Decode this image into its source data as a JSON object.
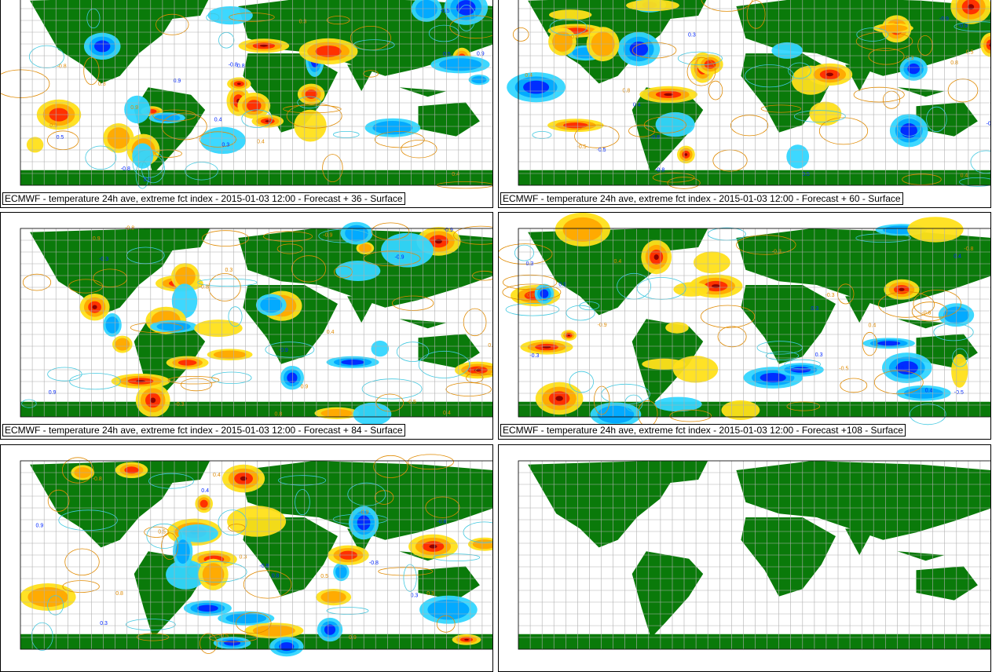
{
  "colors": {
    "land": "#0a7a0a",
    "grid": "#b0b0b0",
    "water": "#ffffff",
    "warm_weak": "#ffe01a",
    "warm_mid": "#ffa800",
    "warm_strong": "#ff2a00",
    "warm_extreme": "#8a0000",
    "cold_weak": "#33d6ff",
    "cold_mid": "#00a8ff",
    "cold_strong": "#0026ff",
    "contour_warm": "#e08a00",
    "contour_cold": "#40c8e0"
  },
  "contour_labels": [
    "0.3",
    "0.5",
    "0.8",
    "-0.8",
    "-0.5",
    "-0.3",
    "0.9",
    "-0.9",
    "0.4"
  ],
  "panels": [
    {
      "caption": "ECMWF - temperature 24h ave, extreme fct index - 2015-01-03 12:00 - Forecast + 36 - Surface"
    },
    {
      "caption": "ECMWF - temperature 24h ave, extreme fct index - 2015-01-03 12:00 - Forecast + 60 - Surface"
    },
    {
      "caption": "ECMWF - temperature 24h ave, extreme fct index - 2015-01-03 12:00 - Forecast + 84 - Surface"
    },
    {
      "caption": "ECMWF - temperature 24h ave, extreme fct index - 2015-01-03 12:00 - Forecast +108 - Surface"
    },
    {
      "caption": ""
    },
    {
      "caption": ""
    }
  ]
}
